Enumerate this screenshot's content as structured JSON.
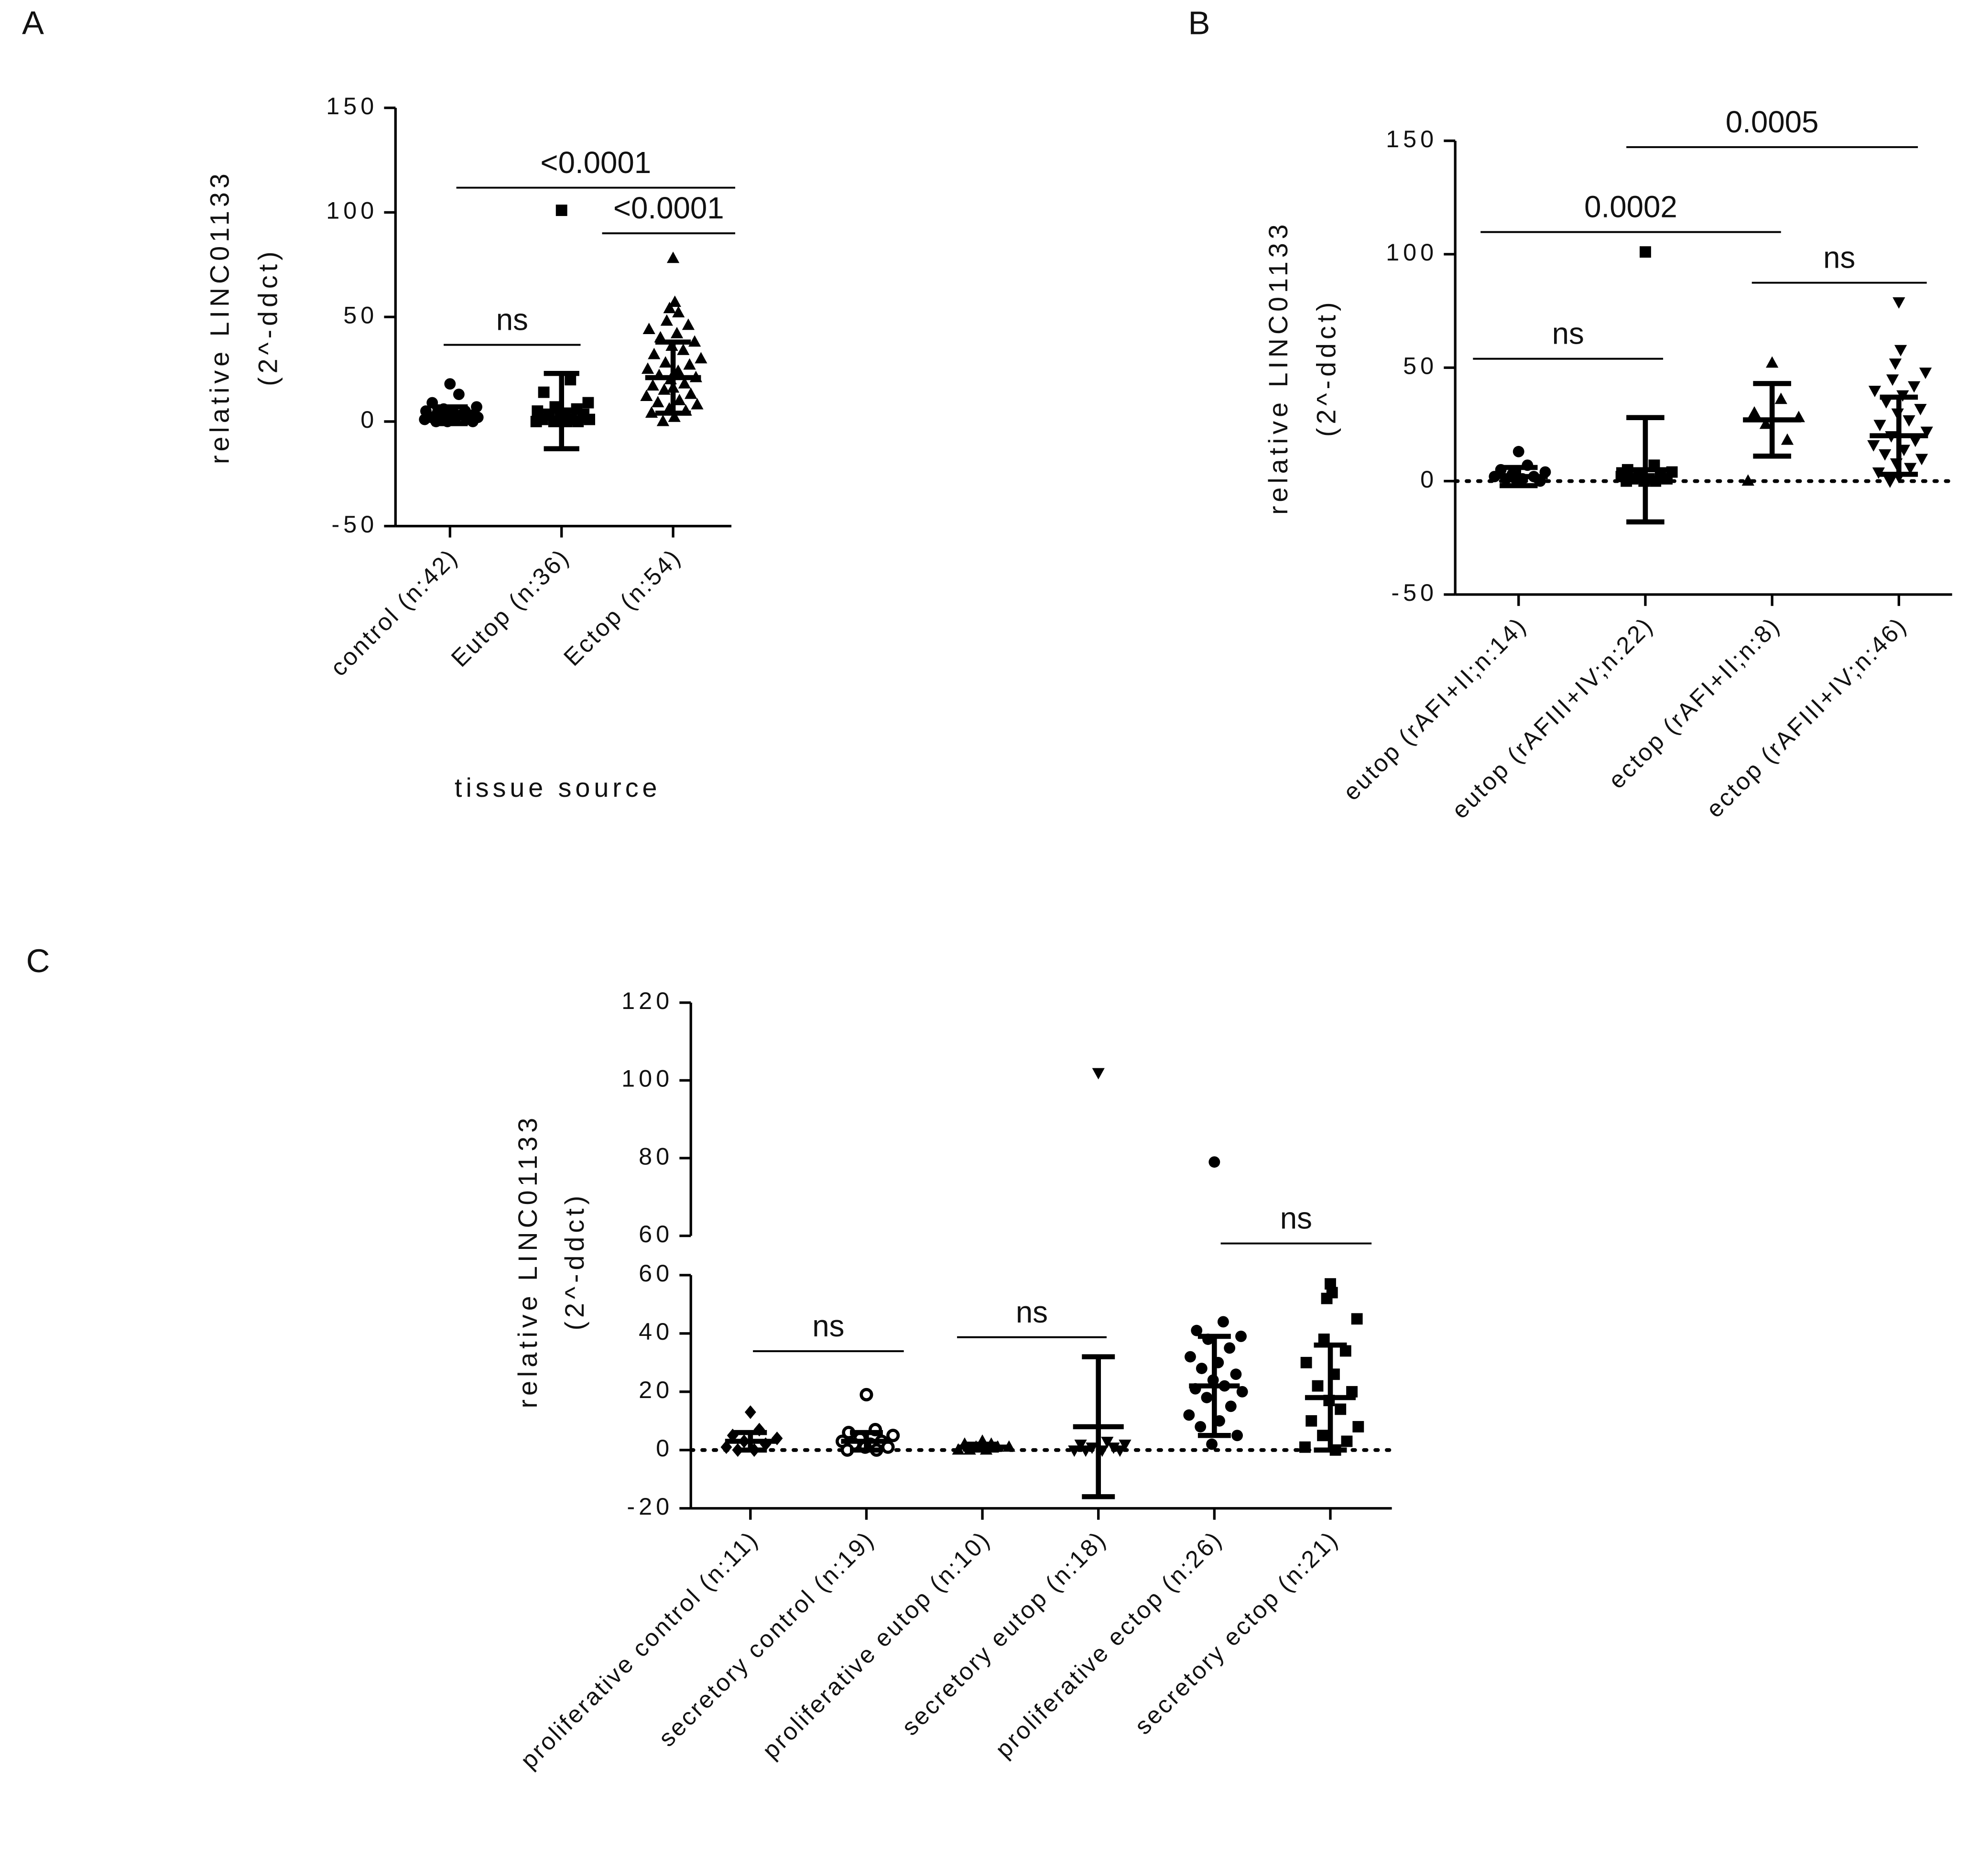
{
  "chart_data": [
    {
      "type": "dotplot",
      "panel": "A",
      "y_label": [
        "relative LINC01133",
        "(2^-ddct)"
      ],
      "x_label": "tissue source",
      "categories": [
        "control (n:42)",
        "Eutop (n:36)",
        "Ectop (n:54)"
      ],
      "markers": [
        "circle",
        "square",
        "triangle"
      ],
      "means": [
        3,
        5,
        21
      ],
      "errors": [
        4,
        18,
        17
      ],
      "points": [
        [
          18,
          13,
          9,
          7,
          6,
          5,
          5,
          4,
          4,
          3,
          3,
          3,
          2,
          2,
          2,
          1,
          1,
          1,
          0,
          0,
          0
        ],
        [
          101,
          20,
          14,
          9,
          7,
          6,
          5,
          4,
          3,
          2,
          2,
          1,
          1,
          1,
          0,
          0,
          0,
          0
        ],
        [
          78,
          57,
          54,
          52,
          48,
          46,
          44,
          42,
          40,
          38,
          36,
          34,
          32,
          30,
          28,
          27,
          25,
          24,
          22,
          21,
          20,
          18,
          17,
          16,
          15,
          13,
          12,
          10,
          9,
          8,
          6,
          5,
          4,
          2,
          0
        ]
      ],
      "annotations": [
        "<0.0001",
        "<0.0001",
        "ns"
      ],
      "ylim": [
        -50,
        150
      ],
      "yticks": [
        -50,
        0,
        50,
        100,
        150
      ],
      "zero_line": false
    },
    {
      "type": "dotplot",
      "panel": "B",
      "y_label": [
        "relative LINC01133",
        "(2^-ddct)"
      ],
      "categories": [
        "eutop (rAFI+II;n:14)",
        "eutop (rAFIII+IV;n:22)",
        "ectop (rAFI+II;n:8)",
        "ectop (rAFIII+IV;n:46)"
      ],
      "markers": [
        "circle",
        "square",
        "triangle",
        "triangle-down"
      ],
      "means": [
        2,
        5,
        27,
        20
      ],
      "errors": [
        4,
        23,
        16,
        17
      ],
      "points": [
        [
          13,
          7,
          5,
          4,
          3,
          2,
          2,
          1,
          1,
          0,
          0
        ],
        [
          101,
          7,
          5,
          4,
          3,
          2,
          2,
          1,
          1,
          1,
          0,
          0,
          0
        ],
        [
          52,
          36,
          30,
          28,
          25,
          18,
          0
        ],
        [
          79,
          58,
          52,
          48,
          45,
          42,
          40,
          38,
          35,
          32,
          30,
          27,
          25,
          22,
          20,
          18,
          16,
          14,
          12,
          10,
          8,
          6,
          4,
          2,
          0
        ]
      ],
      "annotations": [
        "0.0005",
        "0.0002",
        "ns",
        "ns"
      ],
      "ylim": [
        -50,
        150
      ],
      "yticks": [
        -50,
        0,
        50,
        100,
        150
      ],
      "zero_line": true
    },
    {
      "type": "dotplot",
      "panel": "C",
      "y_label": [
        "relative LINC01133",
        "(2^-ddct)"
      ],
      "categories": [
        "proliferative control (n:11)",
        "secretory control (n:19)",
        "proliferative eutop (n:10)",
        "secretory eutop (n:18)",
        "proliferative ectop (n:26)",
        "secretory ectop (n:21)"
      ],
      "markers": [
        "diamond",
        "circle-open",
        "triangle",
        "triangle-down",
        "circle",
        "square"
      ],
      "means": [
        3,
        3,
        1,
        8,
        22,
        18
      ],
      "errors": [
        3,
        3,
        1,
        24,
        17,
        18
      ],
      "points": [
        [
          13,
          7,
          5,
          4,
          3,
          2,
          1,
          0,
          0
        ],
        [
          19,
          7,
          6,
          5,
          4,
          3,
          3,
          2,
          2,
          1,
          1,
          0,
          0
        ],
        [
          3,
          2,
          2,
          1,
          1,
          1,
          0,
          0,
          0
        ],
        [
          102,
          3,
          2,
          2,
          1,
          1,
          0,
          0,
          0,
          0
        ],
        [
          79,
          44,
          41,
          39,
          38,
          35,
          32,
          30,
          28,
          26,
          24,
          22,
          21,
          20,
          18,
          15,
          12,
          10,
          8,
          5,
          2
        ],
        [
          57,
          54,
          52,
          45,
          38,
          34,
          30,
          26,
          22,
          20,
          17,
          14,
          10,
          8,
          5,
          3,
          1,
          0
        ]
      ],
      "annotations": [
        "ns",
        "ns",
        "ns"
      ],
      "ylim": [
        -20,
        60
      ],
      "yticks": [
        -20,
        0,
        20,
        40,
        60
      ],
      "ylim_upper": [
        60,
        120
      ],
      "yticks_upper": [
        60,
        80,
        100,
        120
      ],
      "zero_line": true
    }
  ]
}
